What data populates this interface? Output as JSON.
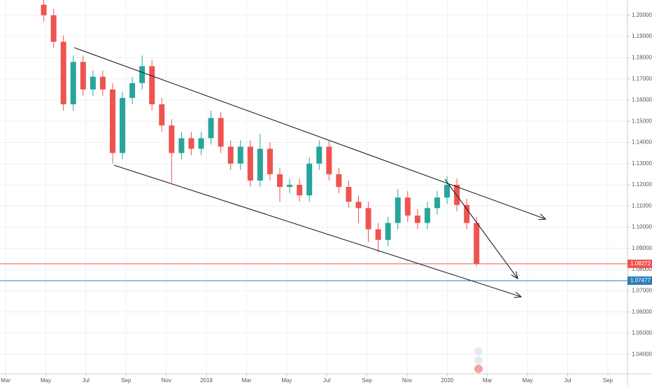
{
  "chart_data": {
    "type": "candlestick",
    "x": [
      1.9,
      2.39,
      2.88,
      3.37,
      3.86,
      4.35,
      4.84,
      5.33,
      5.82,
      6.31,
      6.8,
      7.29,
      7.78,
      8.27,
      8.76,
      9.25,
      9.74,
      10.23,
      10.72,
      11.21,
      11.7,
      12.19,
      12.68,
      13.17,
      13.66,
      14.15,
      14.64,
      15.13,
      15.62,
      16.11,
      16.6,
      17.09,
      17.58,
      18.07,
      18.56,
      19.05,
      19.54,
      20.03,
      20.52,
      21.01,
      21.5,
      21.99,
      22.48,
      22.97,
      23.46
    ],
    "open": [
      1.205,
      1.2,
      1.1875,
      1.158,
      1.178,
      1.165,
      1.171,
      1.165,
      1.135,
      1.161,
      1.168,
      1.176,
      1.158,
      1.148,
      1.135,
      1.142,
      1.137,
      1.142,
      1.1515,
      1.138,
      1.13,
      1.138,
      1.122,
      1.137,
      1.125,
      1.119,
      1.12,
      1.115,
      1.13,
      1.138,
      1.125,
      1.119,
      1.112,
      1.109,
      1.099,
      1.094,
      1.102,
      1.114,
      1.1055,
      1.102,
      1.109,
      1.114,
      1.12,
      1.1105,
      1.102
    ],
    "high": [
      1.208,
      1.203,
      1.1905,
      1.181,
      1.181,
      1.174,
      1.174,
      1.168,
      1.164,
      1.171,
      1.181,
      1.179,
      1.161,
      1.151,
      1.145,
      1.145,
      1.145,
      1.155,
      1.1545,
      1.141,
      1.141,
      1.141,
      1.144,
      1.14,
      1.128,
      1.123,
      1.123,
      1.133,
      1.141,
      1.141,
      1.128,
      1.122,
      1.115,
      1.112,
      1.102,
      1.105,
      1.118,
      1.117,
      1.1085,
      1.112,
      1.117,
      1.124,
      1.123,
      1.1135,
      1.105
    ],
    "low": [
      1.197,
      1.1845,
      1.155,
      1.155,
      1.162,
      1.162,
      1.162,
      1.13,
      1.132,
      1.158,
      1.165,
      1.155,
      1.145,
      1.121,
      1.132,
      1.134,
      1.134,
      1.139,
      1.135,
      1.127,
      1.127,
      1.119,
      1.119,
      1.122,
      1.112,
      1.116,
      1.112,
      1.112,
      1.127,
      1.122,
      1.116,
      1.109,
      1.102,
      1.093,
      1.088,
      1.091,
      1.099,
      1.1025,
      1.099,
      1.099,
      1.106,
      1.111,
      1.1075,
      1.099,
      1.0815
    ],
    "close": [
      1.2,
      1.1875,
      1.158,
      1.178,
      1.165,
      1.171,
      1.165,
      1.135,
      1.161,
      1.168,
      1.176,
      1.158,
      1.148,
      1.135,
      1.142,
      1.137,
      1.142,
      1.1515,
      1.138,
      1.13,
      1.138,
      1.122,
      1.137,
      1.125,
      1.119,
      1.12,
      1.115,
      1.13,
      1.138,
      1.125,
      1.119,
      1.112,
      1.109,
      1.099,
      1.094,
      1.102,
      1.114,
      1.1055,
      1.102,
      1.109,
      1.114,
      1.12,
      1.1105,
      1.102,
      1.0827
    ],
    "up_color": "#26a69a",
    "down_color": "#ef5350",
    "xlim": [
      -0.28,
      30.98
    ],
    "ylim": [
      1.03082,
      1.20721
    ],
    "xticks": [
      {
        "value": 0,
        "label": "Mar"
      },
      {
        "value": 2,
        "label": "May"
      },
      {
        "value": 4,
        "label": "Jul"
      },
      {
        "value": 6,
        "label": "Sep"
      },
      {
        "value": 8,
        "label": "Nov"
      },
      {
        "value": 10,
        "label": "2019"
      },
      {
        "value": 12,
        "label": "Mar"
      },
      {
        "value": 14,
        "label": "May"
      },
      {
        "value": 16,
        "label": "Jul"
      },
      {
        "value": 18,
        "label": "Sep"
      },
      {
        "value": 20,
        "label": "Nov"
      },
      {
        "value": 22,
        "label": "2020"
      },
      {
        "value": 24,
        "label": "Mar"
      },
      {
        "value": 26,
        "label": "May"
      },
      {
        "value": 28,
        "label": "Jul"
      },
      {
        "value": 30,
        "label": "Sep"
      }
    ],
    "yticks": [
      {
        "value": 1.04,
        "label": "1.04000"
      },
      {
        "value": 1.05,
        "label": "1.05000"
      },
      {
        "value": 1.06,
        "label": "1.06000"
      },
      {
        "value": 1.07,
        "label": "1.07000"
      },
      {
        "value": 1.08,
        "label": "1.08000"
      },
      {
        "value": 1.09,
        "label": "1.09000"
      },
      {
        "value": 1.1,
        "label": "1.10000"
      },
      {
        "value": 1.11,
        "label": "1.11000"
      },
      {
        "value": 1.12,
        "label": "1.12000"
      },
      {
        "value": 1.13,
        "label": "1.13000"
      },
      {
        "value": 1.14,
        "label": "1.14000"
      },
      {
        "value": 1.15,
        "label": "1.15000"
      },
      {
        "value": 1.16,
        "label": "1.16000"
      },
      {
        "value": 1.17,
        "label": "1.17000"
      },
      {
        "value": 1.18,
        "label": "1.18000"
      },
      {
        "value": 1.19,
        "label": "1.19000"
      },
      {
        "value": 1.2,
        "label": "1.20000"
      }
    ],
    "grid": true,
    "price_lines": [
      {
        "value": 1.08272,
        "label": "1.08272",
        "color": "#ef5350"
      },
      {
        "value": 1.07477,
        "label": "1.07477",
        "color": "#2a7fb8"
      }
    ]
  }
}
